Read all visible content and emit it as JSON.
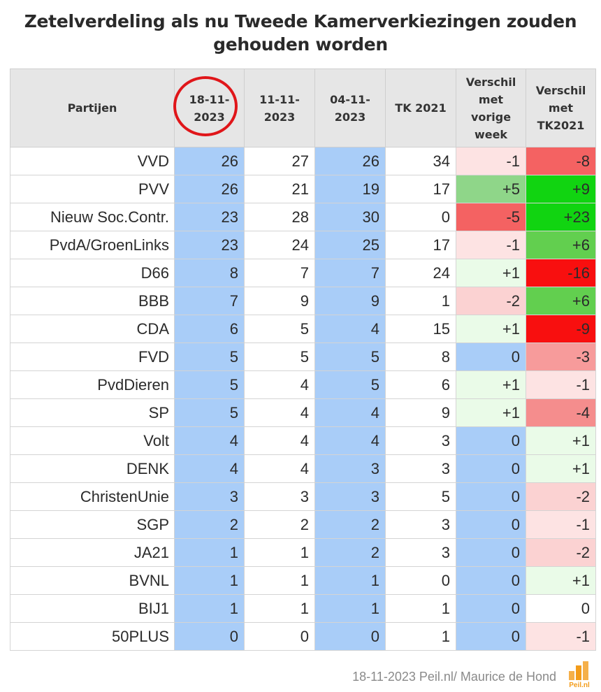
{
  "title_line1": "Zetelverdeling als nu Tweede Kamerverkiezingen zouden",
  "title_line2": "gehouden worden",
  "headers": {
    "party": "Partijen",
    "p1": [
      "18-11-",
      "2023"
    ],
    "p2": [
      "11-11-",
      "2023"
    ],
    "p3": [
      "04-11-",
      "2023"
    ],
    "tk": "TK 2021",
    "diff_week": [
      "Verschil",
      "met",
      "vorige",
      "week"
    ],
    "diff_tk": [
      "Verschil",
      "met",
      "TK2021"
    ]
  },
  "colors": {
    "poll_col": "#a9cdf8",
    "zero": "#a9cdf8",
    "neg1": "#fde3e3",
    "neg2": "#fbd2d2",
    "neg3": "#f79b9b",
    "neg4": "#f58d8d",
    "neg5": "#f46262",
    "neg8": "#f46262",
    "neg_strong": "#f80f0f",
    "pos1": "#eafbe8",
    "pos5": "#8fd689",
    "pos6": "#62cf4f",
    "pos_strong": "#11d411",
    "header_bg": "#e6e6e6",
    "highlight_ring": "#e0161a"
  },
  "chart_data": {
    "type": "table",
    "title": "Zetelverdeling als nu Tweede Kamerverkiezingen zouden gehouden worden",
    "columns": [
      "Partijen",
      "18-11-2023",
      "11-11-2023",
      "04-11-2023",
      "TK 2021",
      "Verschil met vorige week",
      "Verschil met TK2021"
    ],
    "rows": [
      {
        "party": "VVD",
        "p1": 26,
        "p2": 27,
        "p3": 26,
        "tk": 34,
        "dw": "-1",
        "dt": "-8"
      },
      {
        "party": "PVV",
        "p1": 26,
        "p2": 21,
        "p3": 19,
        "tk": 17,
        "dw": "+5",
        "dt": "+9"
      },
      {
        "party": "Nieuw Soc.Contr.",
        "p1": 23,
        "p2": 28,
        "p3": 30,
        "tk": 0,
        "dw": "-5",
        "dt": "+23"
      },
      {
        "party": "PvdA/GroenLinks",
        "p1": 23,
        "p2": 24,
        "p3": 25,
        "tk": 17,
        "dw": "-1",
        "dt": "+6"
      },
      {
        "party": "D66",
        "p1": 8,
        "p2": 7,
        "p3": 7,
        "tk": 24,
        "dw": "+1",
        "dt": "-16"
      },
      {
        "party": "BBB",
        "p1": 7,
        "p2": 9,
        "p3": 9,
        "tk": 1,
        "dw": "-2",
        "dt": "+6"
      },
      {
        "party": "CDA",
        "p1": 6,
        "p2": 5,
        "p3": 4,
        "tk": 15,
        "dw": "+1",
        "dt": "-9"
      },
      {
        "party": "FVD",
        "p1": 5,
        "p2": 5,
        "p3": 5,
        "tk": 8,
        "dw": "0",
        "dt": "-3"
      },
      {
        "party": "PvdDieren",
        "p1": 5,
        "p2": 4,
        "p3": 5,
        "tk": 6,
        "dw": "+1",
        "dt": "-1"
      },
      {
        "party": "SP",
        "p1": 5,
        "p2": 4,
        "p3": 4,
        "tk": 9,
        "dw": "+1",
        "dt": "-4"
      },
      {
        "party": "Volt",
        "p1": 4,
        "p2": 4,
        "p3": 4,
        "tk": 3,
        "dw": "0",
        "dt": "+1"
      },
      {
        "party": "DENK",
        "p1": 4,
        "p2": 4,
        "p3": 3,
        "tk": 3,
        "dw": "0",
        "dt": "+1"
      },
      {
        "party": "ChristenUnie",
        "p1": 3,
        "p2": 3,
        "p3": 3,
        "tk": 5,
        "dw": "0",
        "dt": "-2"
      },
      {
        "party": "SGP",
        "p1": 2,
        "p2": 2,
        "p3": 2,
        "tk": 3,
        "dw": "0",
        "dt": "-1"
      },
      {
        "party": "JA21",
        "p1": 1,
        "p2": 1,
        "p3": 2,
        "tk": 3,
        "dw": "0",
        "dt": "-2"
      },
      {
        "party": "BVNL",
        "p1": 1,
        "p2": 1,
        "p3": 1,
        "tk": 0,
        "dw": "0",
        "dt": "+1"
      },
      {
        "party": "BIJ1",
        "p1": 1,
        "p2": 1,
        "p3": 1,
        "tk": 1,
        "dw": "0",
        "dt": "0"
      },
      {
        "party": "50PLUS",
        "p1": 0,
        "p2": 0,
        "p3": 0,
        "tk": 1,
        "dw": "0",
        "dt": "-1"
      }
    ]
  },
  "footer": "18-11-2023 Peil.nl/ Maurice de Hond",
  "logo_text": "Peil.nl"
}
